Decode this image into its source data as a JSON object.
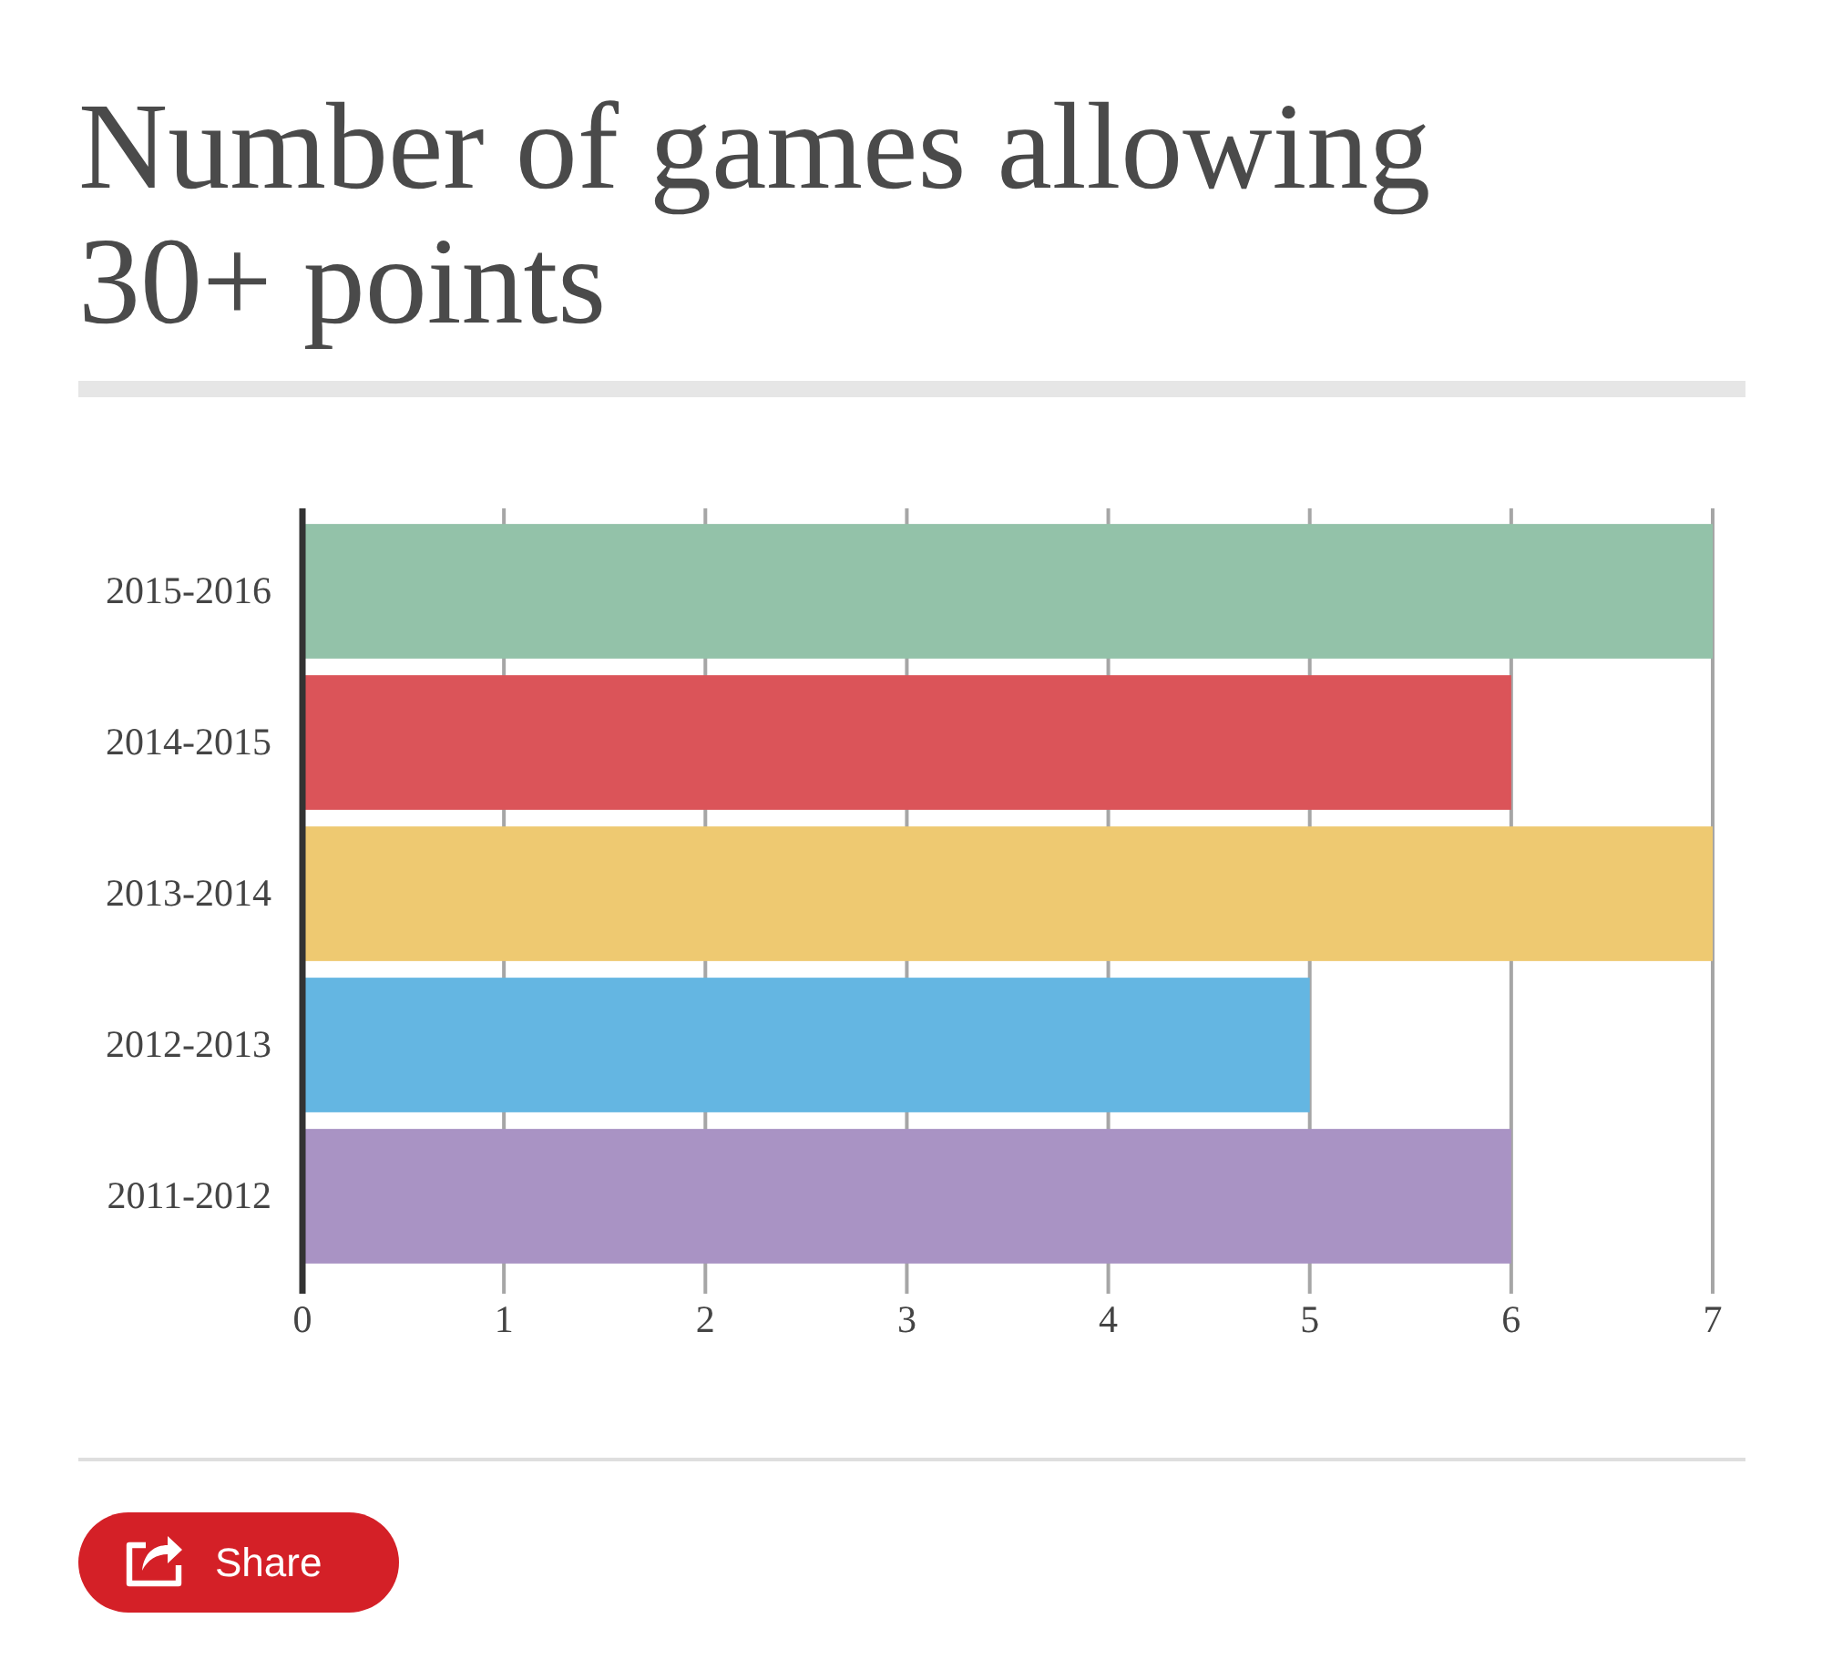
{
  "chart_data": {
    "type": "bar",
    "orientation": "horizontal",
    "title": "Number of games allowing 30+ points",
    "categories": [
      "2015-2016",
      "2014-2015",
      "2013-2014",
      "2012-2013",
      "2011-2012"
    ],
    "values": [
      7,
      6,
      7,
      5,
      6
    ],
    "colors": [
      "#93c2a9",
      "#db5459",
      "#eec971",
      "#64b6e2",
      "#a993c4"
    ],
    "xlim": [
      0,
      7
    ],
    "xticks": [
      0,
      1,
      2,
      3,
      4,
      5,
      6,
      7
    ],
    "grid": "x",
    "annotations": [
      "Share"
    ]
  }
}
